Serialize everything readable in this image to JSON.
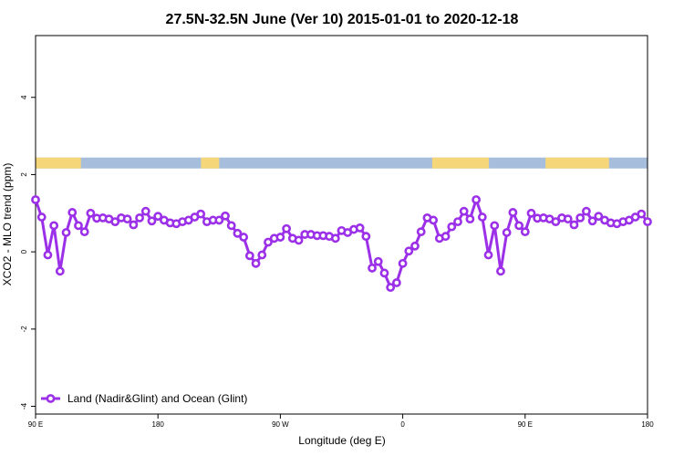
{
  "chart_data": {
    "type": "line",
    "title": "27.5N-32.5N June (Ver 10)   2015-01-01 to 2020-12-18",
    "xlabel": "Longitude (deg E)",
    "ylabel": "XCO2 - MLO trend (ppm)",
    "xlim": [
      -90,
      180
    ],
    "ylim": [
      -4.2,
      5.6
    ],
    "x_ticks": [
      {
        "value": -90,
        "label": "90 E"
      },
      {
        "value": -36,
        "label": "180"
      },
      {
        "value": 18,
        "label": "90 W"
      },
      {
        "value": 72,
        "label": "0"
      },
      {
        "value": 126,
        "label": "90 E"
      },
      {
        "value": 180,
        "label": "180"
      }
    ],
    "y_ticks": [
      {
        "value": -4,
        "label": "-4"
      },
      {
        "value": -2,
        "label": "-2"
      },
      {
        "value": 0,
        "label": "0"
      },
      {
        "value": 2,
        "label": "2"
      },
      {
        "value": 4,
        "label": "4"
      }
    ],
    "grid": false,
    "legend_position": "bottom-left",
    "series": [
      {
        "name": "Land (Nadir&Glint) and Ocean (Glint)",
        "color": "#9b30e8",
        "x": [
          -90,
          -87.3,
          -84.6,
          -81.9,
          -79.2,
          -76.5,
          -73.8,
          -71.1,
          -68.4,
          -65.7,
          -63,
          -60.3,
          -57.6,
          -54.9,
          -52.2,
          -49.5,
          -46.8,
          -44.1,
          -41.4,
          -38.7,
          -36,
          -33.3,
          -30.6,
          -27.9,
          -25.2,
          -22.5,
          -19.8,
          -17.1,
          -14.4,
          -11.7,
          -9,
          -6.3,
          -3.6,
          -0.9,
          1.8,
          4.5,
          7.2,
          9.9,
          12.6,
          15.3,
          18,
          20.7,
          23.4,
          26.1,
          28.8,
          31.5,
          34.2,
          36.9,
          39.6,
          42.3,
          45,
          47.7,
          50.4,
          53.1,
          55.8,
          58.5,
          61.2,
          63.9,
          66.6,
          69.3,
          72,
          74.7,
          77.4,
          80.1,
          82.8,
          85.5,
          88.2,
          90.9,
          93.6,
          96.3,
          99,
          101.7,
          104.4,
          107.1,
          109.8,
          112.5,
          115.2,
          117.9,
          120.6,
          123.3,
          126,
          128.7,
          131.4,
          134.1,
          136.8,
          139.5,
          142.2,
          144.9,
          147.6,
          150.3,
          153,
          155.7,
          158.4,
          161.1,
          163.8,
          166.5,
          169.2,
          171.9,
          174.6,
          177.3,
          180
        ],
        "y": [
          1.35,
          0.9,
          -0.08,
          0.68,
          -0.5,
          0.5,
          1.02,
          0.68,
          0.52,
          1.0,
          0.87,
          0.88,
          0.85,
          0.78,
          0.88,
          0.85,
          0.7,
          0.88,
          1.05,
          0.8,
          0.92,
          0.82,
          0.75,
          0.73,
          0.78,
          0.82,
          0.9,
          0.98,
          0.78,
          0.82,
          0.82,
          0.93,
          0.68,
          0.48,
          0.38,
          -0.1,
          -0.3,
          -0.08,
          0.25,
          0.35,
          0.38,
          0.6,
          0.35,
          0.3,
          0.45,
          0.45,
          0.42,
          0.42,
          0.4,
          0.35,
          0.55,
          0.5,
          0.58,
          0.62,
          0.4,
          -0.42,
          -0.25,
          -0.55,
          -0.92,
          -0.8,
          -0.3,
          0.02,
          0.15,
          0.52,
          0.88,
          0.82,
          0.35,
          0.4,
          0.65,
          0.78,
          1.05,
          0.85,
          1.35,
          0.9,
          -0.08,
          0.68,
          -0.5,
          0.5,
          1.02,
          0.68,
          0.52,
          1.0,
          0.87,
          0.88,
          0.85,
          0.78,
          0.88,
          0.85,
          0.7,
          0.88,
          1.05,
          0.8,
          0.92,
          0.82,
          0.75,
          0.73,
          0.78,
          0.82,
          0.9,
          0.98,
          0.78
        ]
      }
    ],
    "surface_band": {
      "y_value": 2.3,
      "colors": {
        "land": "#f5d77a",
        "ocean": "#a6bedc"
      },
      "land_ranges": [
        [
          -90,
          -70
        ],
        [
          -17,
          -9
        ],
        [
          85,
          110
        ],
        [
          135,
          163
        ]
      ]
    }
  }
}
